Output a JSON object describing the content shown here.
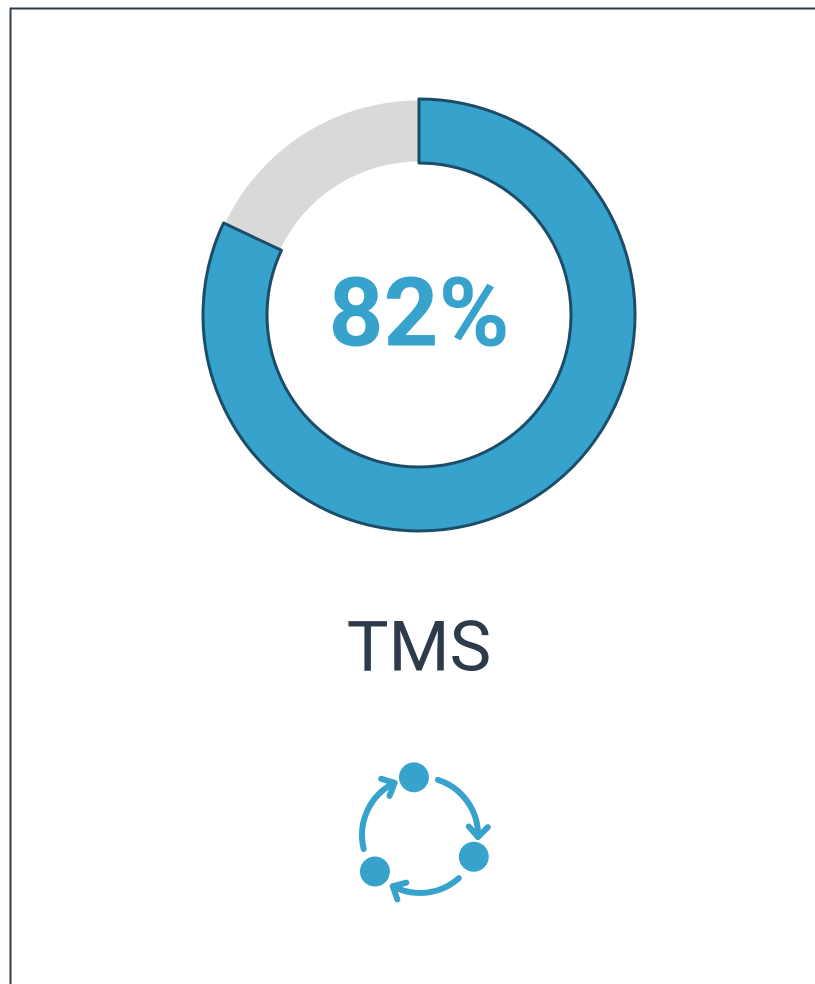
{
  "chart_data": {
    "type": "donut",
    "title": "TMS",
    "values": [
      82,
      18
    ],
    "value_labels": [
      "82%",
      null
    ],
    "colors": [
      "#37a3cd",
      "#d9d9d9"
    ]
  }
}
